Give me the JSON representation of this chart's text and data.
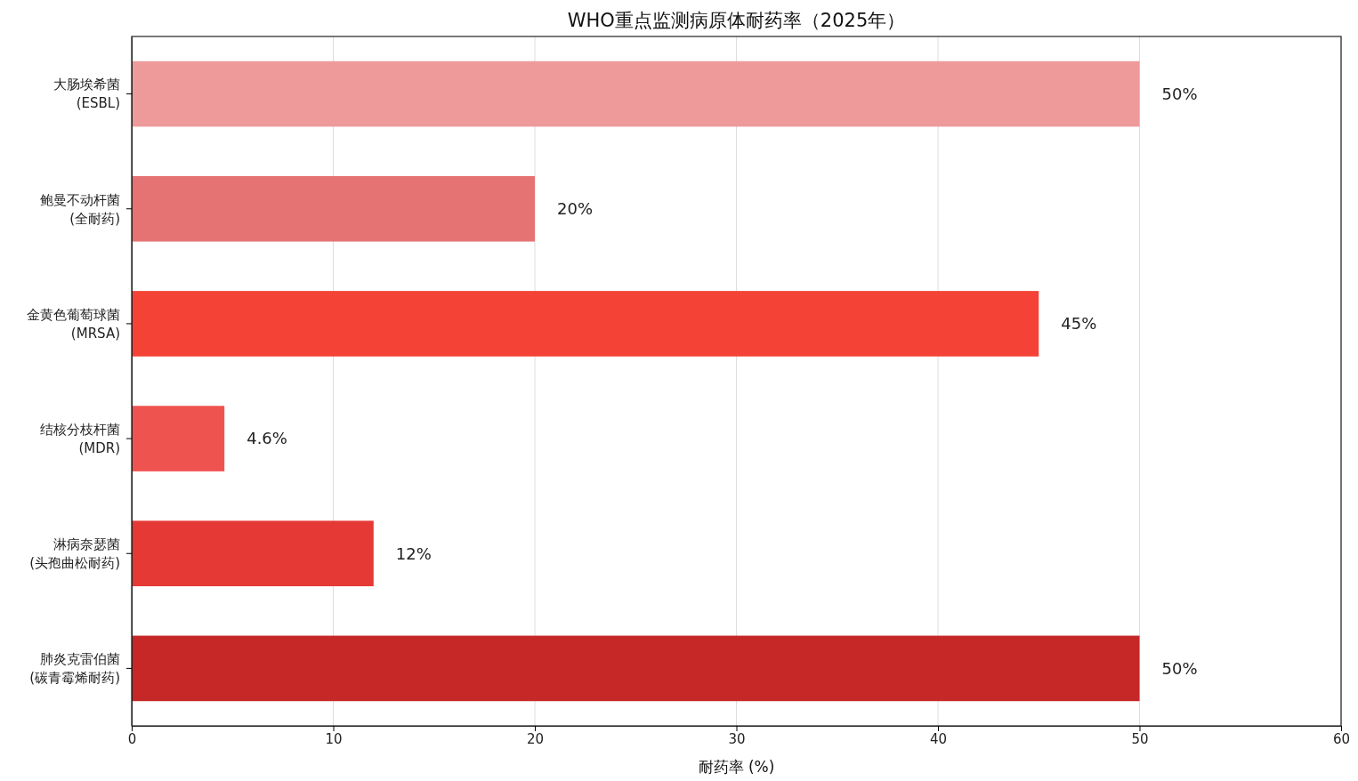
{
  "chart_data": {
    "type": "bar",
    "orientation": "horizontal",
    "title": "WHO重点监测病原体耐药率（2025年）",
    "xlabel": "耐药率 (%)",
    "categories": [
      "大肠埃希菌\n(ESBL)",
      "鲍曼不动杆菌\n(全耐药)",
      "金黄色葡萄球菌\n(MRSA)",
      "结核分枝杆菌\n(MDR)",
      "淋病奈瑟菌\n(头孢曲松耐药)",
      "肺炎克雷伯菌\n(碳青霉烯耐药)"
    ],
    "values": [
      50,
      20,
      45,
      4.6,
      12,
      50
    ],
    "colors": [
      "#ee9a9b",
      "#e57373",
      "#f44336",
      "#ef5350",
      "#e53935",
      "#c62828"
    ],
    "value_labels": [
      "50%",
      "20%",
      "45%",
      "4.6%",
      "12%",
      "50%"
    ],
    "xlim": [
      0,
      60
    ],
    "xticks": [
      0,
      10,
      20,
      30,
      40,
      50,
      60
    ],
    "grid": "x"
  }
}
